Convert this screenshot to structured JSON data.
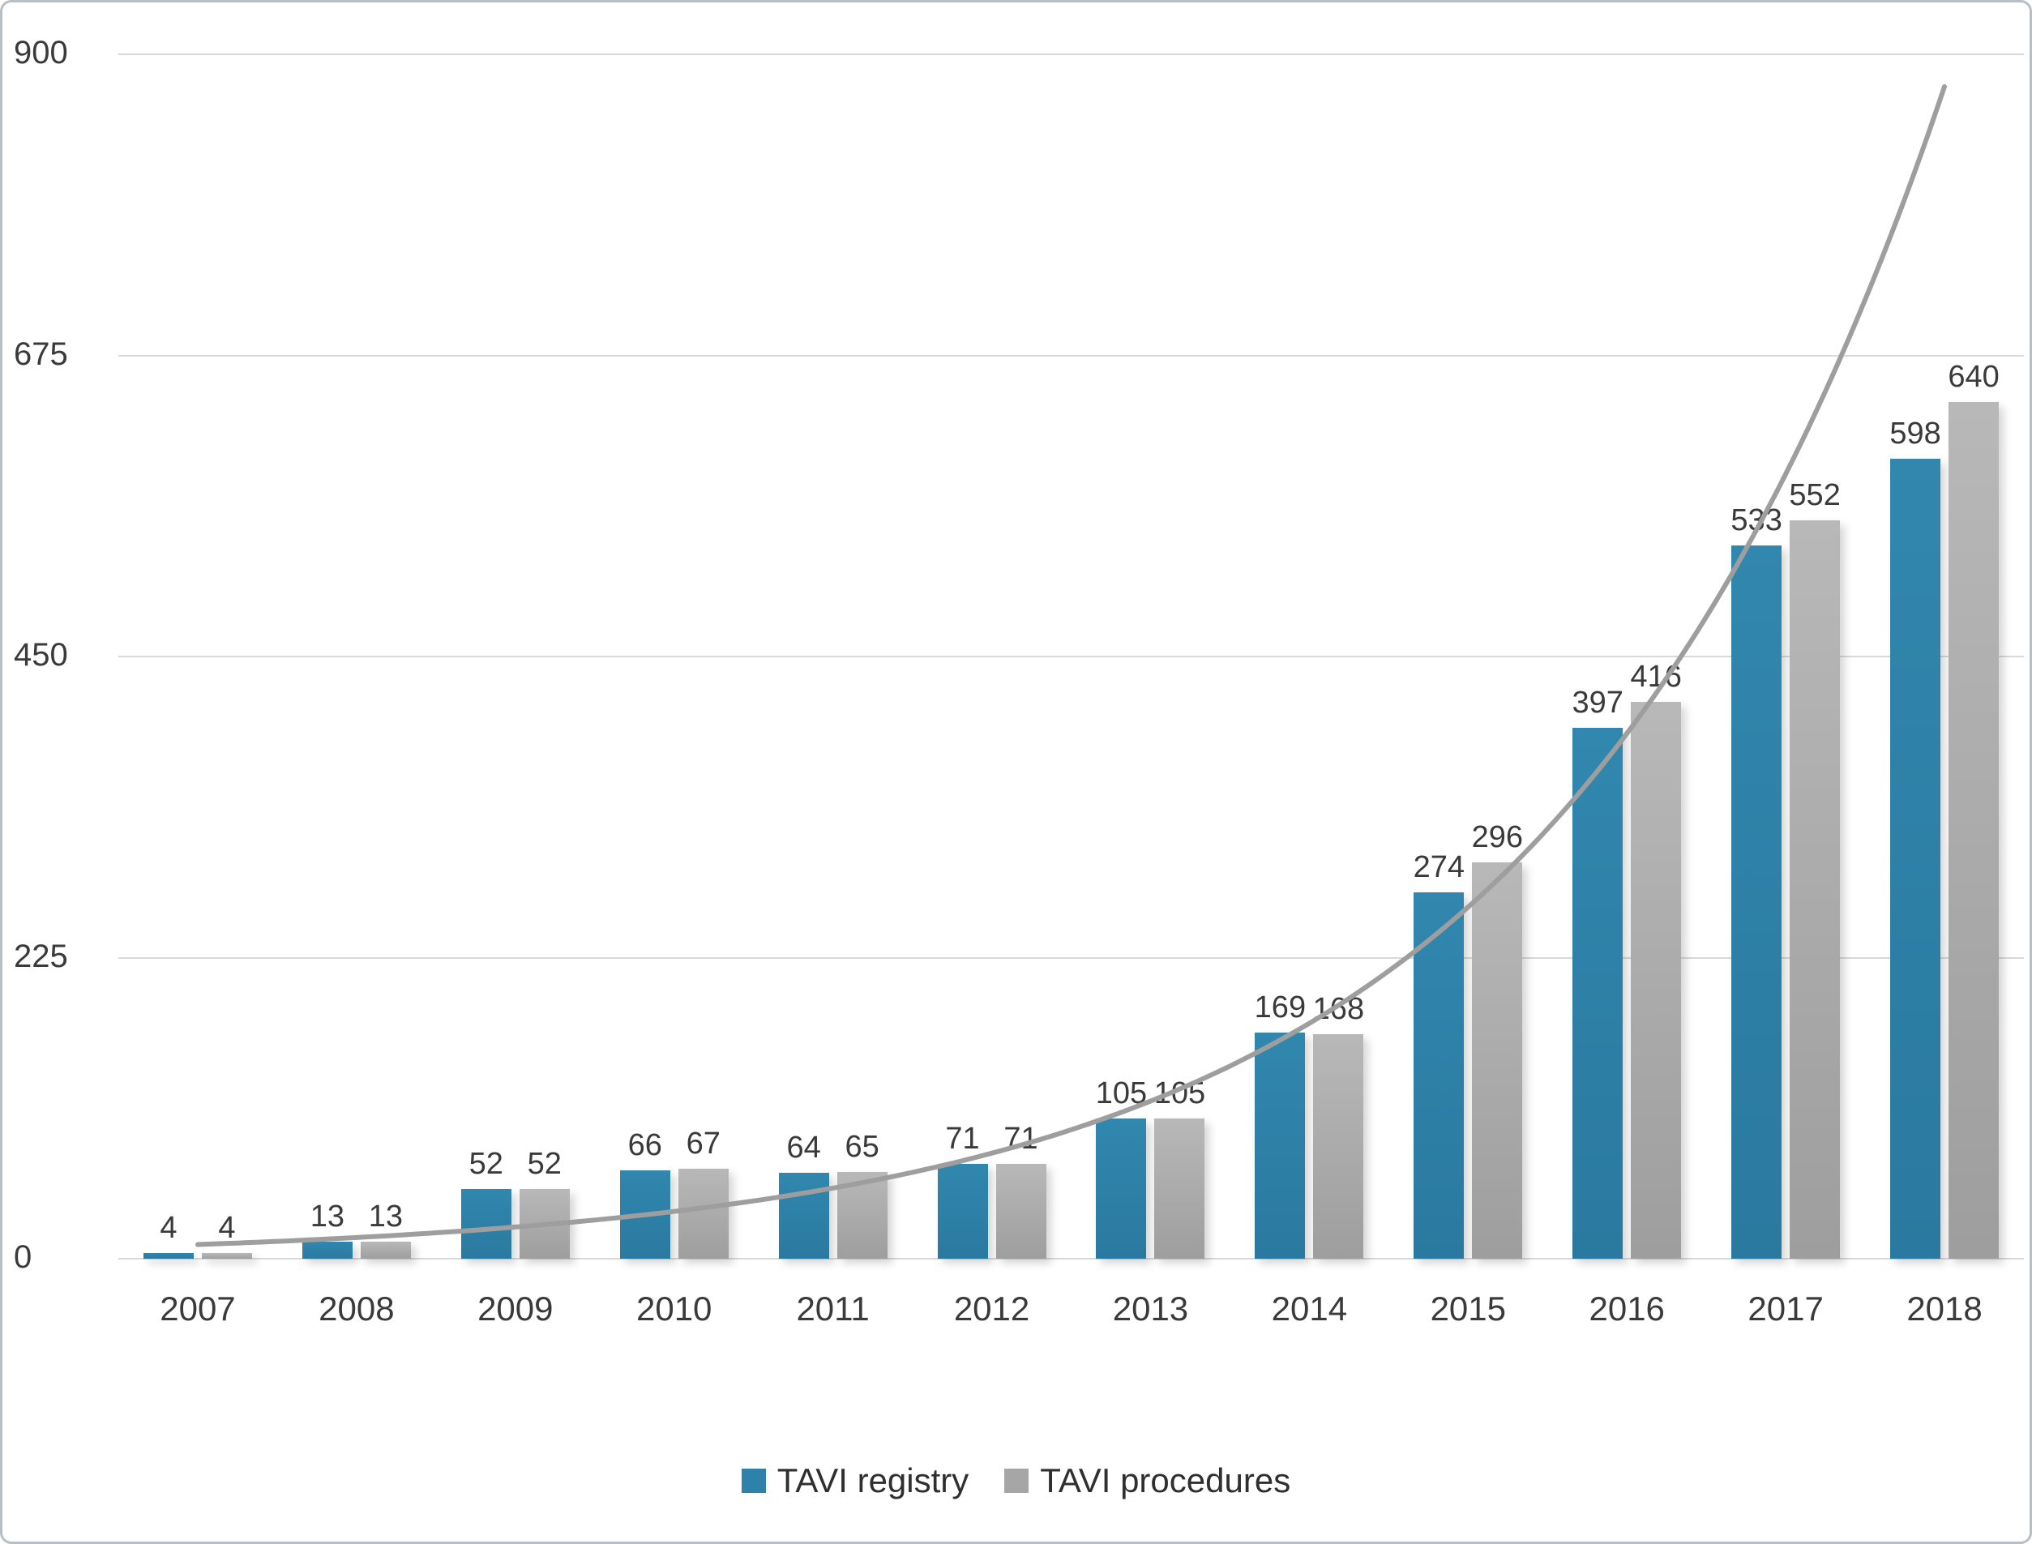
{
  "chart_data": {
    "type": "bar",
    "title": "",
    "xlabel": "",
    "ylabel": "",
    "categories": [
      "2007",
      "2008",
      "2009",
      "2010",
      "2011",
      "2012",
      "2013",
      "2014",
      "2015",
      "2016",
      "2017",
      "2018"
    ],
    "series": [
      {
        "name": "TAVI registry",
        "color": "#2e81a8",
        "values": [
          4,
          13,
          52,
          66,
          64,
          71,
          105,
          169,
          274,
          397,
          533,
          598
        ]
      },
      {
        "name": "TAVI procedures",
        "color": "#a6a6a6",
        "values": [
          4,
          13,
          52,
          67,
          65,
          71,
          105,
          168,
          296,
          416,
          552,
          640
        ]
      }
    ],
    "yticks": [
      0,
      225,
      450,
      675,
      900
    ],
    "ylim": [
      0,
      900
    ],
    "grid": true,
    "legend_position": "bottom",
    "data_labels": true,
    "trendline": {
      "type": "exponential",
      "a": 10.6,
      "b": 0.4013,
      "color": "#9e9e9e"
    }
  }
}
